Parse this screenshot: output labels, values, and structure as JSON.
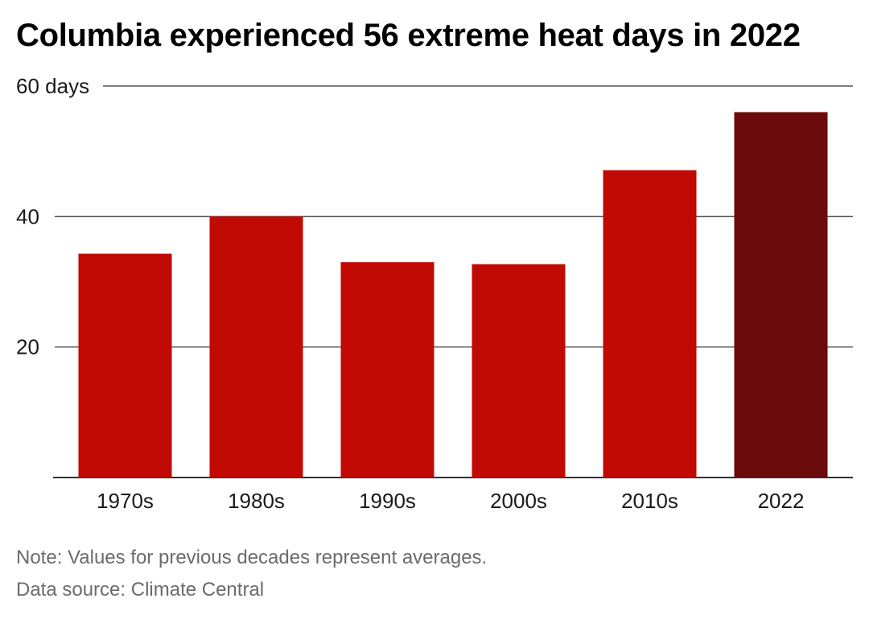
{
  "chart_data": {
    "type": "bar",
    "title": "Columbia experienced 56 extreme heat days in 2022",
    "categories": [
      "1970s",
      "1980s",
      "1990s",
      "2000s",
      "2010s",
      "2022"
    ],
    "values": [
      34.3,
      40.0,
      33.0,
      32.7,
      47.1,
      56.0
    ],
    "ylim": [
      0,
      60
    ],
    "yticks": [
      {
        "value": 20,
        "label": "20"
      },
      {
        "value": 40,
        "label": "40"
      },
      {
        "value": 60,
        "label": "60 days"
      }
    ],
    "xlabel": "",
    "ylabel": "",
    "grid": true,
    "colors": {
      "bar": "#c10a04",
      "highlight": "#6b0a0a",
      "grid": "#555555",
      "axis": "#333333"
    },
    "highlight_category": "2022"
  },
  "footer": {
    "note": "Note: Values for previous decades represent averages.",
    "source": "Data source: Climate Central"
  }
}
